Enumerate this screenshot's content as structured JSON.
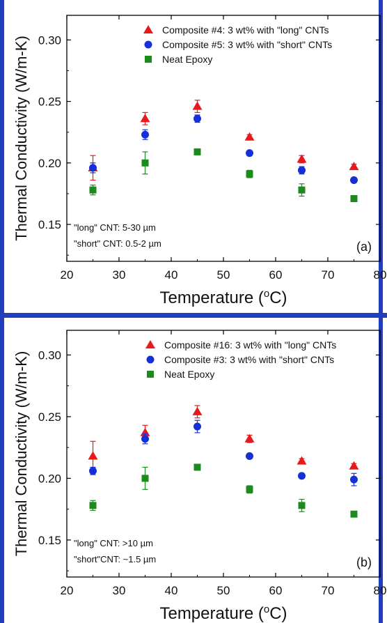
{
  "chart_data": [
    {
      "type": "scatter",
      "panel_label": "(a)",
      "xlabel": "Temperature (",
      "xlabel_sup": "o",
      "xlabel_end": "C)",
      "ylabel": "Thermal Conductivity (W/m-K)",
      "xlim": [
        20,
        80
      ],
      "ylim": [
        0.12,
        0.32
      ],
      "xticks": [
        20,
        30,
        40,
        50,
        60,
        70,
        80
      ],
      "yticks": [
        "0.15",
        "0.20",
        "0.25",
        "0.30"
      ],
      "legend_position": "top",
      "note_lines": [
        "\"long\" CNT: 5-30 µm",
        "\"short\" CNT: 0.5-2 µm"
      ],
      "series": [
        {
          "name": "Composite #4: 3 wt% with \"long\" CNTs",
          "marker": "triangle",
          "color": "#e8191b",
          "x": [
            25,
            35,
            45,
            55,
            65,
            75
          ],
          "y": [
            0.196,
            0.236,
            0.246,
            0.221,
            0.203,
            0.197
          ],
          "err": [
            0.01,
            0.005,
            0.005,
            0.002,
            0.003,
            0.002
          ]
        },
        {
          "name": "Composite #5: 3 wt% with \"short\" CNTs",
          "marker": "circle",
          "color": "#1530d6",
          "x": [
            25,
            35,
            45,
            55,
            65,
            75
          ],
          "y": [
            0.196,
            0.223,
            0.236,
            0.208,
            0.194,
            0.186
          ],
          "err": [
            0.004,
            0.004,
            0.003,
            0.002,
            0.003,
            0.002
          ]
        },
        {
          "name": "Neat Epoxy",
          "marker": "square",
          "color": "#1c8a1c",
          "x": [
            25,
            35,
            45,
            55,
            65,
            75
          ],
          "y": [
            0.178,
            0.2,
            0.209,
            0.191,
            0.178,
            0.171
          ],
          "err": [
            0.004,
            0.009,
            0.002,
            0.003,
            0.005,
            0.002
          ]
        }
      ]
    },
    {
      "type": "scatter",
      "panel_label": "(b)",
      "xlabel": "Temperature (",
      "xlabel_sup": "o",
      "xlabel_end": "C)",
      "ylabel": "Thermal Conductivity (W/m-K)",
      "xlim": [
        20,
        80
      ],
      "ylim": [
        0.12,
        0.32
      ],
      "xticks": [
        20,
        30,
        40,
        50,
        60,
        70,
        80
      ],
      "yticks": [
        "0.15",
        "0.20",
        "0.25",
        "0.30"
      ],
      "legend_position": "top",
      "note_lines": [
        "\"long\" CNT: >10 µm",
        "\"short\"CNT: ~1.5 µm"
      ],
      "series": [
        {
          "name": "Composite #16: 3 wt% with \"long\" CNTs",
          "marker": "triangle",
          "color": "#e8191b",
          "x": [
            25,
            35,
            45,
            55,
            65,
            75
          ],
          "y": [
            0.218,
            0.237,
            0.254,
            0.232,
            0.214,
            0.21
          ],
          "err": [
            0.012,
            0.006,
            0.005,
            0.003,
            0.002,
            0.002
          ]
        },
        {
          "name": "Composite #3: 3 wt% with \"short\" CNTs",
          "marker": "circle",
          "color": "#1530d6",
          "x": [
            25,
            35,
            45,
            55,
            65,
            75
          ],
          "y": [
            0.206,
            0.232,
            0.242,
            0.218,
            0.202,
            0.199
          ],
          "err": [
            0.003,
            0.004,
            0.005,
            0.002,
            0.002,
            0.005
          ]
        },
        {
          "name": "Neat Epoxy",
          "marker": "square",
          "color": "#1c8a1c",
          "x": [
            25,
            35,
            45,
            55,
            65,
            75
          ],
          "y": [
            0.178,
            0.2,
            0.209,
            0.191,
            0.178,
            0.171
          ],
          "err": [
            0.004,
            0.009,
            0.002,
            0.003,
            0.005,
            0.002
          ]
        }
      ]
    }
  ]
}
